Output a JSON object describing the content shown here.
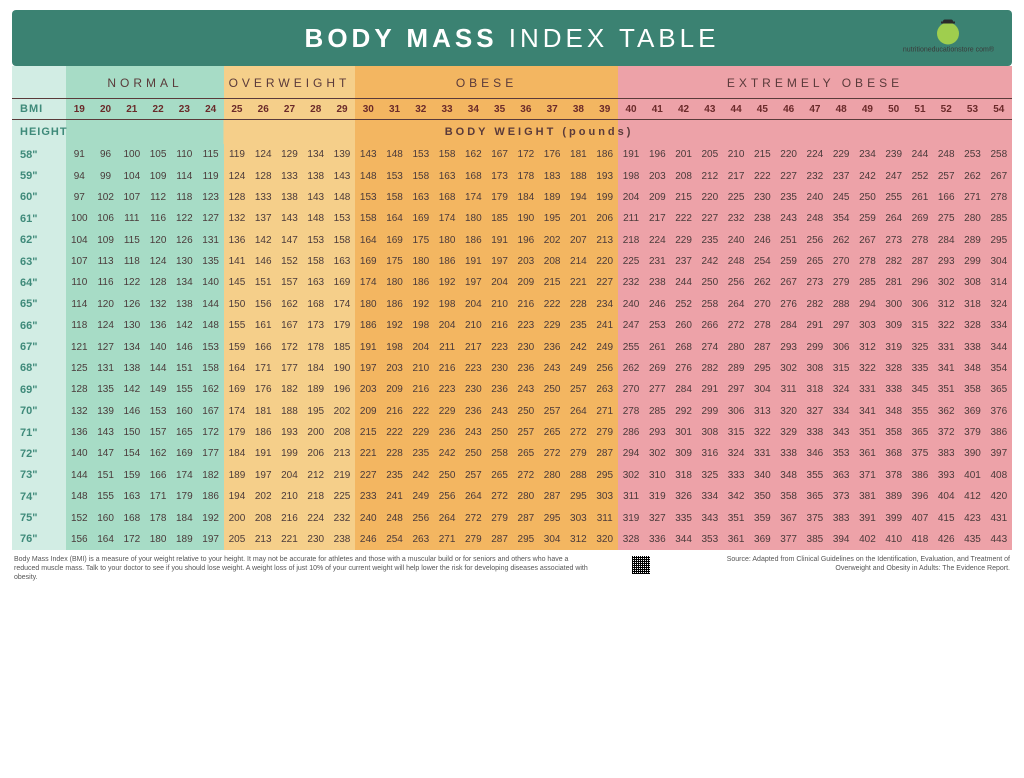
{
  "colors": {
    "banner_bg": "#3b8272",
    "height_col_bg": "#d2ede4",
    "normal_bg": "#a7dcc6",
    "overweight_bg": "#f5cf8a",
    "obese_bg": "#f3b661",
    "extremely_obese_bg": "#eda2a8",
    "text_dark": "#5a3a3a",
    "text_teal": "#3f8a7a",
    "bmi_text": "#6a2a2a"
  },
  "banner": {
    "title_bold": "BODY MASS",
    "title_light": "INDEX TABLE",
    "logo_text": "nutritioneducationstore com®"
  },
  "categories": [
    {
      "label": "NORMAL",
      "span": 6,
      "bg": "#a7dcc6"
    },
    {
      "label": "OVERWEIGHT",
      "span": 5,
      "bg": "#f5cf8a"
    },
    {
      "label": "OBESE",
      "span": 10,
      "bg": "#f3b661"
    },
    {
      "label": "EXTREMELY OBESE",
      "span": 15,
      "bg": "#eda2a8"
    }
  ],
  "labels": {
    "bmi": "BMI",
    "height": "HEIGHT",
    "body_weight": "BODY WEIGHT (pounds)"
  },
  "bmi_values": [
    19,
    20,
    21,
    22,
    23,
    24,
    25,
    26,
    27,
    28,
    29,
    30,
    31,
    32,
    33,
    34,
    35,
    36,
    37,
    38,
    39,
    40,
    41,
    42,
    43,
    44,
    45,
    46,
    47,
    48,
    49,
    50,
    51,
    52,
    53,
    54
  ],
  "heights": [
    "58\"",
    "59\"",
    "60\"",
    "61\"",
    "62\"",
    "63\"",
    "64\"",
    "65\"",
    "66\"",
    "67\"",
    "68\"",
    "69\"",
    "70\"",
    "71\"",
    "72\"",
    "73\"",
    "74\"",
    "75\"",
    "76\""
  ],
  "weights": [
    [
      91,
      96,
      100,
      105,
      110,
      115,
      119,
      124,
      129,
      134,
      139,
      143,
      148,
      153,
      158,
      162,
      167,
      172,
      176,
      181,
      186,
      191,
      196,
      201,
      205,
      210,
      215,
      220,
      224,
      229,
      234,
      239,
      244,
      248,
      253,
      258
    ],
    [
      94,
      99,
      104,
      109,
      114,
      119,
      124,
      128,
      133,
      138,
      143,
      148,
      153,
      158,
      163,
      168,
      173,
      178,
      183,
      188,
      193,
      198,
      203,
      208,
      212,
      217,
      222,
      227,
      232,
      237,
      242,
      247,
      252,
      257,
      262,
      267
    ],
    [
      97,
      102,
      107,
      112,
      118,
      123,
      128,
      133,
      138,
      143,
      148,
      153,
      158,
      163,
      168,
      174,
      179,
      184,
      189,
      194,
      199,
      204,
      209,
      215,
      220,
      225,
      230,
      235,
      240,
      245,
      250,
      255,
      261,
      166,
      271,
      278
    ],
    [
      100,
      106,
      111,
      116,
      122,
      127,
      132,
      137,
      143,
      148,
      153,
      158,
      164,
      169,
      174,
      180,
      185,
      190,
      195,
      201,
      206,
      211,
      217,
      222,
      227,
      232,
      238,
      243,
      248,
      354,
      259,
      264,
      269,
      275,
      280,
      285
    ],
    [
      104,
      109,
      115,
      120,
      126,
      131,
      136,
      142,
      147,
      153,
      158,
      164,
      169,
      175,
      180,
      186,
      191,
      196,
      202,
      207,
      213,
      218,
      224,
      229,
      235,
      240,
      246,
      251,
      256,
      262,
      267,
      273,
      278,
      284,
      289,
      295
    ],
    [
      107,
      113,
      118,
      124,
      130,
      135,
      141,
      146,
      152,
      158,
      163,
      169,
      175,
      180,
      186,
      191,
      197,
      203,
      208,
      214,
      220,
      225,
      231,
      237,
      242,
      248,
      254,
      259,
      265,
      270,
      278,
      282,
      287,
      293,
      299,
      304
    ],
    [
      110,
      116,
      122,
      128,
      134,
      140,
      145,
      151,
      157,
      163,
      169,
      174,
      180,
      186,
      192,
      197,
      204,
      209,
      215,
      221,
      227,
      232,
      238,
      244,
      250,
      256,
      262,
      267,
      273,
      279,
      285,
      281,
      296,
      302,
      308,
      314
    ],
    [
      114,
      120,
      126,
      132,
      138,
      144,
      150,
      156,
      162,
      168,
      174,
      180,
      186,
      192,
      198,
      204,
      210,
      216,
      222,
      228,
      234,
      240,
      246,
      252,
      258,
      264,
      270,
      276,
      282,
      288,
      294,
      300,
      306,
      312,
      318,
      324
    ],
    [
      118,
      124,
      130,
      136,
      142,
      148,
      155,
      161,
      167,
      173,
      179,
      186,
      192,
      198,
      204,
      210,
      216,
      223,
      229,
      235,
      241,
      247,
      253,
      260,
      266,
      272,
      278,
      284,
      291,
      297,
      303,
      309,
      315,
      322,
      328,
      334
    ],
    [
      121,
      127,
      134,
      140,
      146,
      153,
      159,
      166,
      172,
      178,
      185,
      191,
      198,
      204,
      211,
      217,
      223,
      230,
      236,
      242,
      249,
      255,
      261,
      268,
      274,
      280,
      287,
      293,
      299,
      306,
      312,
      319,
      325,
      331,
      338,
      344
    ],
    [
      125,
      131,
      138,
      144,
      151,
      158,
      164,
      171,
      177,
      184,
      190,
      197,
      203,
      210,
      216,
      223,
      230,
      236,
      243,
      249,
      256,
      262,
      269,
      276,
      282,
      289,
      295,
      302,
      308,
      315,
      322,
      328,
      335,
      341,
      348,
      354
    ],
    [
      128,
      135,
      142,
      149,
      155,
      162,
      169,
      176,
      182,
      189,
      196,
      203,
      209,
      216,
      223,
      230,
      236,
      243,
      250,
      257,
      263,
      270,
      277,
      284,
      291,
      297,
      304,
      311,
      318,
      324,
      331,
      338,
      345,
      351,
      358,
      365
    ],
    [
      132,
      139,
      146,
      153,
      160,
      167,
      174,
      181,
      188,
      195,
      202,
      209,
      216,
      222,
      229,
      236,
      243,
      250,
      257,
      264,
      271,
      278,
      285,
      292,
      299,
      306,
      313,
      320,
      327,
      334,
      341,
      348,
      355,
      362,
      369,
      376
    ],
    [
      136,
      143,
      150,
      157,
      165,
      172,
      179,
      186,
      193,
      200,
      208,
      215,
      222,
      229,
      236,
      243,
      250,
      257,
      265,
      272,
      279,
      286,
      293,
      301,
      308,
      315,
      322,
      329,
      338,
      343,
      351,
      358,
      365,
      372,
      379,
      386
    ],
    [
      140,
      147,
      154,
      162,
      169,
      177,
      184,
      191,
      199,
      206,
      213,
      221,
      228,
      235,
      242,
      250,
      258,
      265,
      272,
      279,
      287,
      294,
      302,
      309,
      316,
      324,
      331,
      338,
      346,
      353,
      361,
      368,
      375,
      383,
      390,
      397
    ],
    [
      144,
      151,
      159,
      166,
      174,
      182,
      189,
      197,
      204,
      212,
      219,
      227,
      235,
      242,
      250,
      257,
      265,
      272,
      280,
      288,
      295,
      302,
      310,
      318,
      325,
      333,
      340,
      348,
      355,
      363,
      371,
      378,
      386,
      393,
      401,
      408
    ],
    [
      148,
      155,
      163,
      171,
      179,
      186,
      194,
      202,
      210,
      218,
      225,
      233,
      241,
      249,
      256,
      264,
      272,
      280,
      287,
      295,
      303,
      311,
      319,
      326,
      334,
      342,
      350,
      358,
      365,
      373,
      381,
      389,
      396,
      404,
      412,
      420
    ],
    [
      152,
      160,
      168,
      178,
      184,
      192,
      200,
      208,
      216,
      224,
      232,
      240,
      248,
      256,
      264,
      272,
      279,
      287,
      295,
      303,
      311,
      319,
      327,
      335,
      343,
      351,
      359,
      367,
      375,
      383,
      391,
      399,
      407,
      415,
      423,
      431
    ],
    [
      156,
      164,
      172,
      180,
      189,
      197,
      205,
      213,
      221,
      230,
      238,
      246,
      254,
      263,
      271,
      279,
      287,
      295,
      304,
      312,
      320,
      328,
      336,
      344,
      353,
      361,
      369,
      377,
      385,
      394,
      402,
      410,
      418,
      426,
      435,
      443
    ]
  ],
  "footer": {
    "left": "Body Mass Index (BMI) is a measure of your weight relative to your height. It may not be accurate for athletes and those with a muscular build or for seniors and others who have a reduced muscle mass. Talk to your doctor to see if you should lose weight. A weight loss of just 10% of your current weight will help lower the risk for developing diseases associated with obesity.",
    "right": "Source: Adapted from Clinical Guidelines on the Identification, Evaluation, and Treatment of Overweight and Obesity in Adults: The Evidence Report."
  }
}
